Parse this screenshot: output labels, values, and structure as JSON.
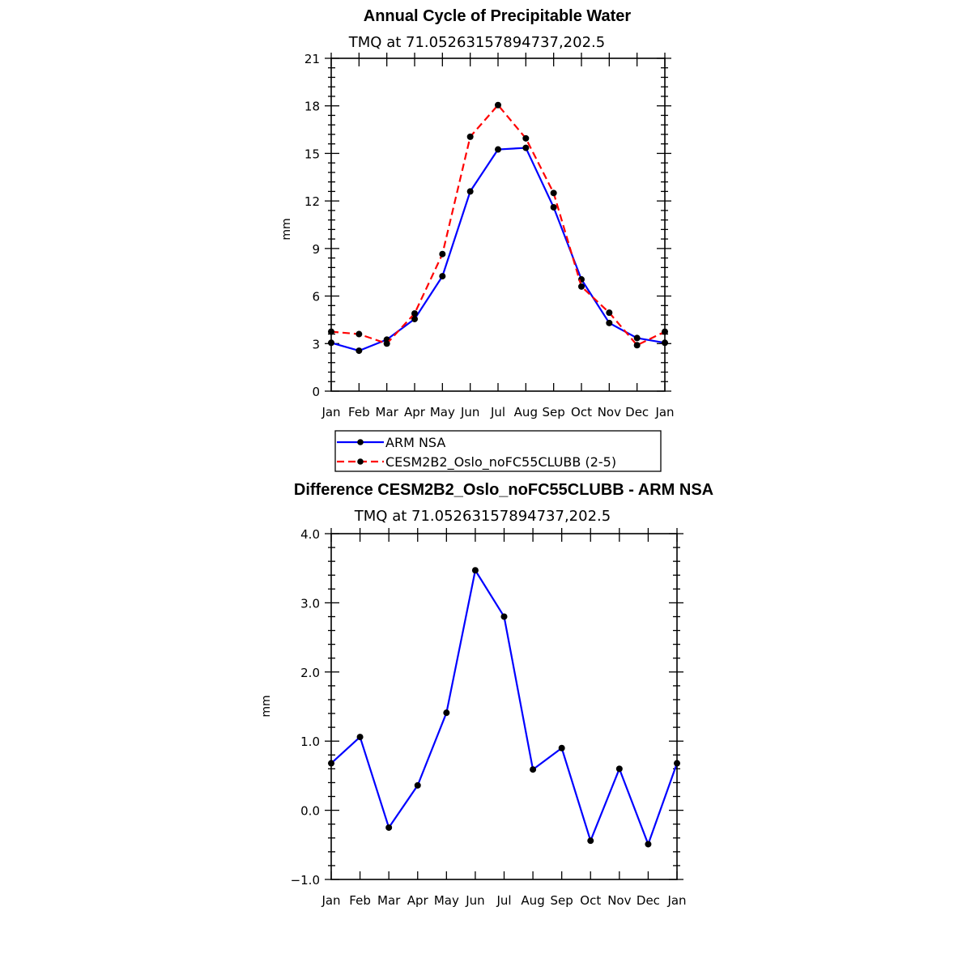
{
  "chart_data": [
    {
      "type": "line",
      "title": "Annual Cycle of Precipitable Water",
      "subtitle": "TMQ at 71.05263157894737,202.5",
      "xlabel": "",
      "ylabel": "mm",
      "categories": [
        "Jan",
        "Feb",
        "Mar",
        "Apr",
        "May",
        "Jun",
        "Jul",
        "Aug",
        "Sep",
        "Oct",
        "Nov",
        "Dec",
        "Jan"
      ],
      "ylim": [
        0,
        21
      ],
      "yticks": [
        0,
        3,
        6,
        9,
        12,
        15,
        18,
        21
      ],
      "ytick_labels": [
        "0",
        "3",
        "6",
        "9",
        "12",
        "15",
        "18",
        "21"
      ],
      "series": [
        {
          "name": "ARM NSA",
          "color": "#0000ff",
          "dash": "solid",
          "values": [
            3.05,
            2.55,
            3.25,
            4.55,
            7.25,
            12.6,
            15.25,
            15.35,
            11.6,
            7.05,
            4.3,
            3.35,
            3.05
          ]
        },
        {
          "name": "CESM2B2_Oslo_noFC55CLUBB (2-5)",
          "color": "#ff0000",
          "dash": "dashed",
          "values": [
            3.75,
            3.6,
            3.0,
            4.9,
            8.65,
            16.05,
            18.05,
            15.95,
            12.5,
            6.6,
            4.95,
            2.9,
            3.75
          ]
        }
      ],
      "legend_position": "below"
    },
    {
      "type": "line",
      "title": "Difference CESM2B2_Oslo_noFC55CLUBB - ARM NSA",
      "subtitle": "TMQ at 71.05263157894737,202.5",
      "xlabel": "",
      "ylabel": "mm",
      "categories": [
        "Jan",
        "Feb",
        "Mar",
        "Apr",
        "May",
        "Jun",
        "Jul",
        "Aug",
        "Sep",
        "Oct",
        "Nov",
        "Dec",
        "Jan"
      ],
      "ylim": [
        -1.0,
        4.0
      ],
      "yticks": [
        -1,
        0,
        1,
        2,
        3,
        4
      ],
      "ytick_labels": [
        "−1.0",
        "0.0",
        "1.0",
        "2.0",
        "3.0",
        "4.0"
      ],
      "series": [
        {
          "name": "Difference",
          "color": "#0000ff",
          "dash": "solid",
          "values": [
            0.68,
            1.06,
            -0.25,
            0.36,
            1.41,
            3.47,
            2.8,
            0.59,
            0.9,
            -0.44,
            0.6,
            -0.49,
            0.68
          ]
        }
      ]
    }
  ]
}
